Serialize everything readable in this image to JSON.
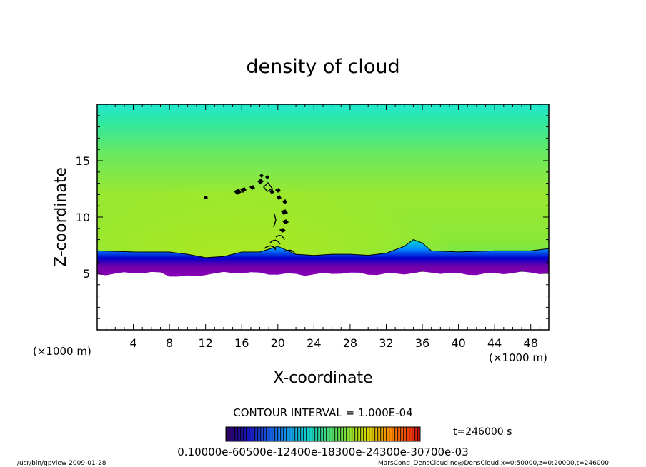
{
  "chart_data": {
    "type": "heatmap",
    "title": "density of cloud",
    "xlabel": "X-coordinate",
    "ylabel": "Z-coordinate",
    "x_unit_left": "(×1000 m)",
    "x_unit_right": "(×1000 m)",
    "xlim": [
      0,
      50
    ],
    "ylim": [
      0,
      20
    ],
    "x_ticks": [
      "4",
      "8",
      "12",
      "16",
      "20",
      "24",
      "28",
      "32",
      "36",
      "40",
      "44",
      "48"
    ],
    "y_ticks": [
      "5",
      "10",
      "15"
    ],
    "x_tick_values": [
      4,
      8,
      12,
      16,
      20,
      24,
      28,
      32,
      36,
      40,
      44,
      48
    ],
    "y_tick_values": [
      5,
      10,
      15
    ],
    "colormap": [
      "#3a006a",
      "#7000a8",
      "#8a00b8",
      "#0000cc",
      "#0030ff",
      "#0090ff",
      "#00d8c8",
      "#00e890",
      "#30e860",
      "#7ae820",
      "#b4e810",
      "#d8e000",
      "#ffa000",
      "#ff3000",
      "#d00000"
    ],
    "cloud_base_km": 5.0,
    "cloud_top_outline_km": [
      [
        0,
        7.0
      ],
      [
        4,
        7.0
      ],
      [
        8,
        6.9
      ],
      [
        10,
        6.8
      ],
      [
        12,
        6.4
      ],
      [
        14,
        6.6
      ],
      [
        16,
        6.9
      ],
      [
        18,
        7.0
      ],
      [
        20,
        7.4
      ],
      [
        22,
        6.8
      ],
      [
        24,
        6.6
      ],
      [
        26,
        6.8
      ],
      [
        28,
        6.7
      ],
      [
        30,
        6.7
      ],
      [
        32,
        6.8
      ],
      [
        34,
        7.5
      ],
      [
        35,
        8.0
      ],
      [
        36,
        7.8
      ],
      [
        37,
        7.0
      ],
      [
        40,
        7.0
      ],
      [
        44,
        7.0
      ],
      [
        48,
        7.1
      ],
      [
        50,
        7.2
      ]
    ],
    "contour_interval_text": "CONTOUR INTERVAL = 1.000E-04",
    "colorbar_labels_text": "0.10000e-60500e-12400e-18300e-24300e-30700e-03",
    "time_text": "t=246000 s"
  },
  "footer": {
    "left": "/usr/bin/gpview  2009-01-28",
    "right": "MarsCond_DensCloud.nc@DensCloud,x=0:50000,z=0:20000,t=246000"
  }
}
